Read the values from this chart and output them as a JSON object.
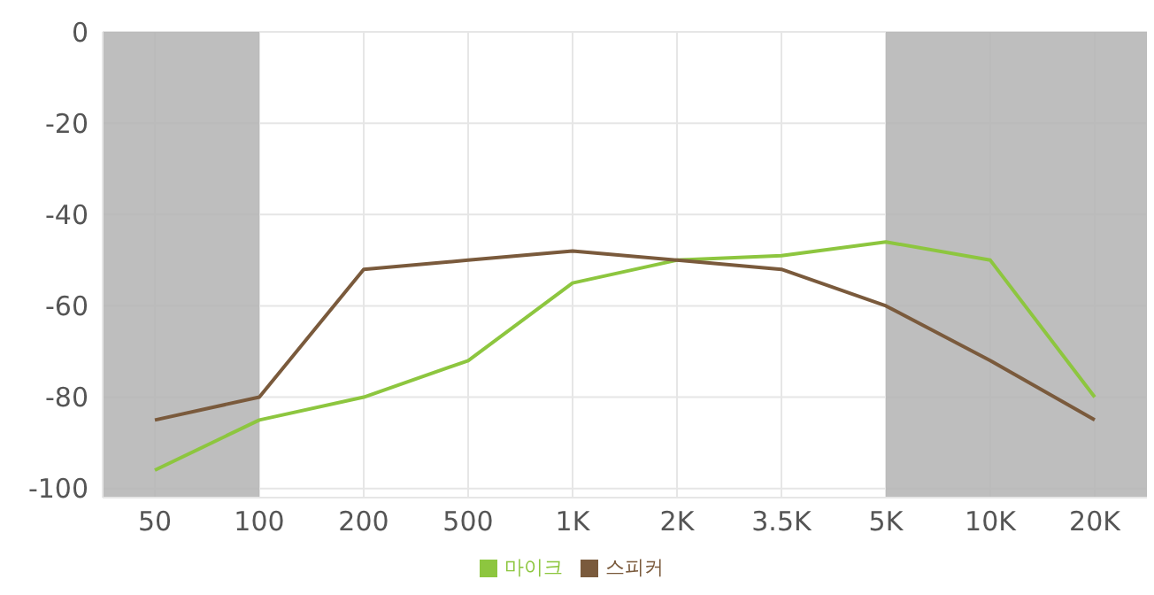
{
  "chart_data": {
    "type": "line",
    "categories": [
      "50",
      "100",
      "200",
      "500",
      "1K",
      "2K",
      "3.5K",
      "5K",
      "10K",
      "20K"
    ],
    "series": [
      {
        "name": "마이크",
        "color": "#8dc63f",
        "values": [
          -96,
          -85,
          -80,
          -72,
          -55,
          -50,
          -49,
          -46,
          -50,
          -80
        ]
      },
      {
        "name": "스피커",
        "color": "#7a5a3c",
        "values": [
          -85,
          -80,
          -52,
          -50,
          -48,
          -50,
          -52,
          -60,
          -72,
          -85
        ]
      }
    ],
    "ylim": [
      -102,
      0
    ],
    "yticks": [
      0,
      -20,
      -40,
      -60,
      -80,
      -100
    ],
    "grid": true,
    "legend": "bottom",
    "marker": "none",
    "line_style": "solid",
    "bands": [
      {
        "axis": "x",
        "from": "50",
        "to": "100",
        "color": "#b3b3b3"
      },
      {
        "axis": "x",
        "from": "5K",
        "to": "20K",
        "color": "#b3b3b3"
      }
    ]
  }
}
